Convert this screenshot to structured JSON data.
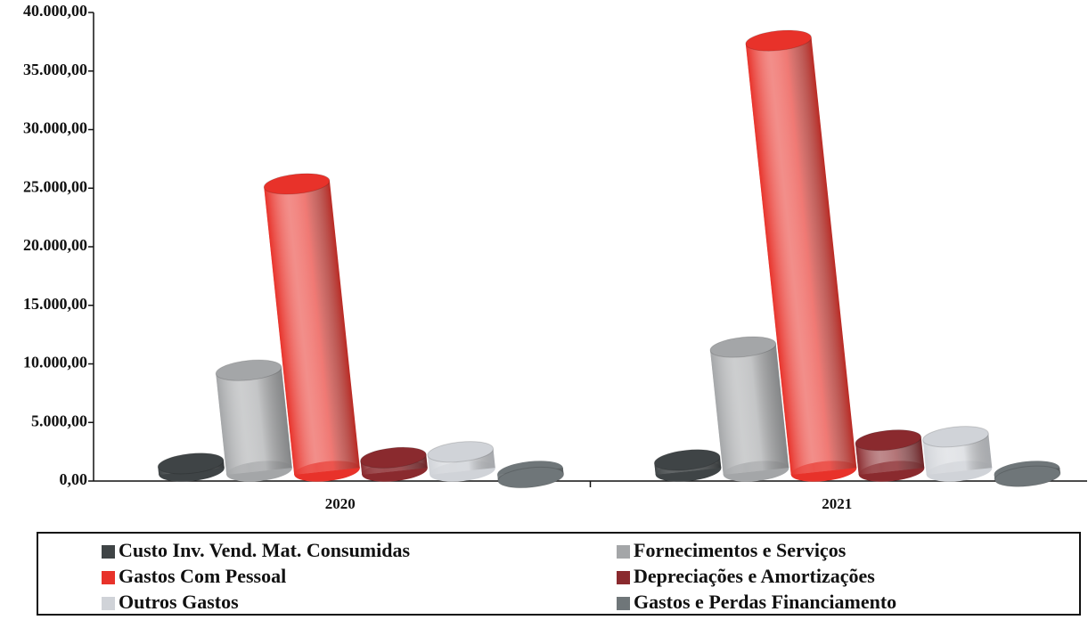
{
  "chart_data": {
    "type": "bar3d",
    "categories": [
      "2020",
      "2021"
    ],
    "series": [
      {
        "name": "Custo Inv. Vend. Mat. Consumidas",
        "color": "#3f4446",
        "values": [
          1500,
          1800
        ]
      },
      {
        "name": "Fornecimentos e Serviços",
        "color": "#a4a6a8",
        "values": [
          9500,
          11500
        ]
      },
      {
        "name": "Gastos Com Pessoal",
        "color": "#e8322a",
        "values": [
          25500,
          37800
        ]
      },
      {
        "name": "Depreciações e Amortizações",
        "color": "#8a2a2e",
        "values": [
          2000,
          3500
        ]
      },
      {
        "name": "Outros Gastos",
        "color": "#d0d3d8",
        "values": [
          2500,
          3800
        ]
      },
      {
        "name": "Gastos e Perdas  Financiamento",
        "color": "#6f7679",
        "values": [
          300,
          400
        ]
      }
    ],
    "ylim": [
      0,
      40000
    ],
    "yticks": [
      {
        "value": 0,
        "label": "0,00"
      },
      {
        "value": 5000,
        "label": "5.000,00"
      },
      {
        "value": 10000,
        "label": "10.000,00"
      },
      {
        "value": 15000,
        "label": "15.000,00"
      },
      {
        "value": 20000,
        "label": "20.000,00"
      },
      {
        "value": 25000,
        "label": "25.000,00"
      },
      {
        "value": 30000,
        "label": "30.000,00"
      },
      {
        "value": 35000,
        "label": "35.000,00"
      },
      {
        "value": 40000,
        "label": "40.000,00"
      }
    ],
    "legend": "bottom"
  }
}
